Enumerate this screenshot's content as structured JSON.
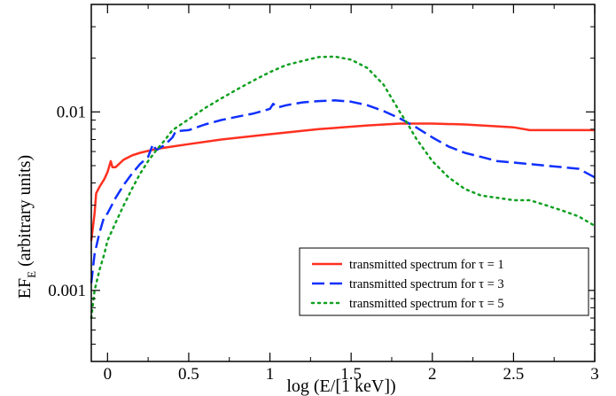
{
  "chart_data": {
    "type": "line",
    "xlabel": "log (E/[1 keV])",
    "ylabel_main": "EF",
    "ylabel_sub": "E",
    "ylabel_rest": " (arbitrary units)",
    "xlim": [
      -0.1,
      3.0
    ],
    "ylim": [
      0.0004,
      0.04
    ],
    "yscale": "log",
    "grid": false,
    "legend_position": "lower-right",
    "x_ticks": [
      {
        "value": 0,
        "label": "0"
      },
      {
        "value": 0.5,
        "label": "0.5"
      },
      {
        "value": 1,
        "label": "1"
      },
      {
        "value": 1.5,
        "label": "1.5"
      },
      {
        "value": 2,
        "label": "2"
      },
      {
        "value": 2.5,
        "label": "2.5"
      },
      {
        "value": 3,
        "label": "3"
      }
    ],
    "y_ticks": [
      {
        "value": 0.001,
        "label": "0.001"
      },
      {
        "value": 0.01,
        "label": "0.01"
      }
    ],
    "series": [
      {
        "name": "transmitted spectrum for τ = 1",
        "color": "#ff3020",
        "dash": "solid",
        "x": [
          -0.1,
          -0.08,
          -0.07,
          -0.05,
          -0.02,
          0.0,
          0.02,
          0.03,
          0.05,
          0.08,
          0.1,
          0.15,
          0.2,
          0.3,
          0.4,
          0.5,
          0.7,
          1.0,
          1.3,
          1.6,
          1.8,
          2.0,
          2.2,
          2.4,
          2.5,
          2.6,
          2.8,
          3.0
        ],
        "y": [
          0.0019,
          0.0027,
          0.0035,
          0.0038,
          0.0042,
          0.0046,
          0.0053,
          0.0049,
          0.0049,
          0.0052,
          0.0054,
          0.0057,
          0.0059,
          0.0062,
          0.0064,
          0.0066,
          0.007,
          0.0075,
          0.008,
          0.0084,
          0.0086,
          0.0086,
          0.0085,
          0.0083,
          0.0082,
          0.0079,
          0.0079,
          0.0079
        ]
      },
      {
        "name": "transmitted spectrum for τ = 3",
        "color": "#1030ff",
        "dash": "long-dash",
        "x": [
          -0.1,
          -0.08,
          -0.05,
          -0.02,
          0.0,
          0.05,
          0.1,
          0.15,
          0.2,
          0.25,
          0.28,
          0.3,
          0.35,
          0.4,
          0.42,
          0.5,
          0.6,
          0.7,
          0.8,
          0.9,
          1.0,
          1.02,
          1.05,
          1.1,
          1.2,
          1.3,
          1.4,
          1.5,
          1.6,
          1.7,
          1.8,
          1.9,
          2.0,
          2.1,
          2.2,
          2.3,
          2.4,
          2.5,
          2.6,
          2.7,
          2.8,
          2.9,
          3.0
        ],
        "y": [
          0.0011,
          0.0016,
          0.0021,
          0.0026,
          0.0027,
          0.0033,
          0.0039,
          0.0045,
          0.0051,
          0.0056,
          0.0066,
          0.0061,
          0.0065,
          0.0072,
          0.0078,
          0.0079,
          0.0085,
          0.009,
          0.0094,
          0.0098,
          0.0104,
          0.0111,
          0.0106,
          0.0109,
          0.0113,
          0.0115,
          0.0116,
          0.0114,
          0.0109,
          0.0101,
          0.0092,
          0.0082,
          0.0072,
          0.0064,
          0.0059,
          0.0056,
          0.0053,
          0.0052,
          0.0051,
          0.005,
          0.0049,
          0.0048,
          0.0043
        ]
      },
      {
        "name": "transmitted spectrum for τ = 5",
        "color": "#10a020",
        "dash": "dotted",
        "x": [
          -0.1,
          -0.08,
          -0.05,
          -0.02,
          0.0,
          0.05,
          0.1,
          0.15,
          0.2,
          0.25,
          0.3,
          0.35,
          0.4,
          0.5,
          0.6,
          0.7,
          0.8,
          0.9,
          1.0,
          1.1,
          1.2,
          1.3,
          1.4,
          1.5,
          1.6,
          1.7,
          1.75,
          1.8,
          1.85,
          1.9,
          2.0,
          2.1,
          2.2,
          2.3,
          2.4,
          2.5,
          2.6,
          2.7,
          2.8,
          2.9,
          3.0
        ],
        "y": [
          0.0007,
          0.001,
          0.0013,
          0.0016,
          0.0019,
          0.0024,
          0.003,
          0.0037,
          0.0045,
          0.0053,
          0.0061,
          0.0069,
          0.0079,
          0.0091,
          0.0105,
          0.0119,
          0.0134,
          0.015,
          0.0167,
          0.0183,
          0.0193,
          0.0203,
          0.0204,
          0.0196,
          0.0176,
          0.0142,
          0.0119,
          0.01,
          0.0085,
          0.0071,
          0.0053,
          0.0043,
          0.0037,
          0.0034,
          0.0033,
          0.0032,
          0.0032,
          0.003,
          0.0028,
          0.0026,
          0.0023
        ]
      }
    ]
  }
}
